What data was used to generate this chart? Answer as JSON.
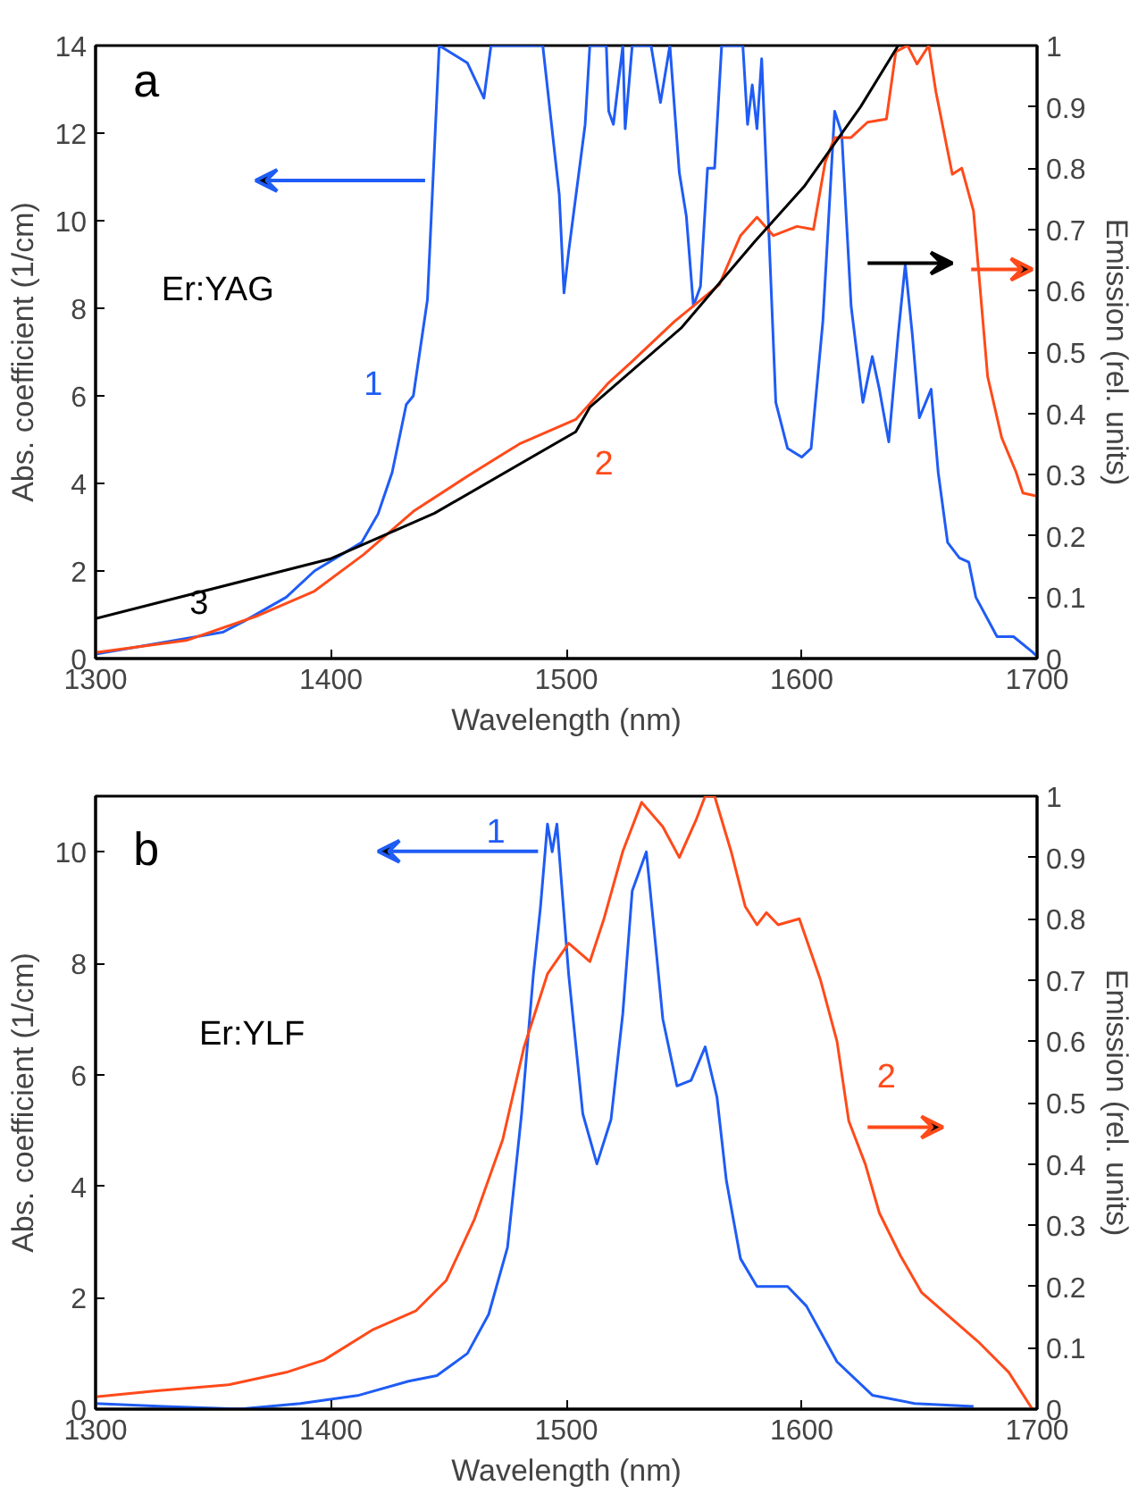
{
  "chart_data": [
    {
      "type": "line",
      "xlabel": "Wavelength (nm)",
      "ylabel": "Abs. coefficient (1/cm)",
      "y2label": "Emission (rel. units)",
      "xlim": [
        1300,
        1700
      ],
      "xticks": [
        1300,
        1400,
        1500,
        1600,
        1700
      ],
      "ylim": [
        0,
        14
      ],
      "yticks": [
        0,
        2,
        4,
        6,
        8,
        10,
        12,
        14
      ],
      "y2lim": [
        0,
        1
      ],
      "y2ticks": [
        0,
        0.1,
        0.2,
        0.3,
        0.4,
        0.5,
        0.6,
        0.7,
        0.8,
        0.9,
        1
      ],
      "line_style": "solid",
      "series": [
        {
          "color": "#1f5cf5",
          "x": [
            1300,
            1354,
            1363,
            1381,
            1393,
            1413,
            1420,
            1426,
            1432,
            1435,
            1441,
            1446,
            1458,
            1465,
            1468,
            1490,
            1497,
            1499,
            1501,
            1508,
            1510,
            1517,
            1518,
            1520,
            1524,
            1525,
            1528,
            1536,
            1540,
            1544,
            1548,
            1551,
            1554,
            1557,
            1560,
            1563,
            1566,
            1575,
            1577,
            1579,
            1581,
            1583,
            1586,
            1589,
            1594,
            1600,
            1604,
            1609,
            1614,
            1617,
            1621,
            1626,
            1630,
            1633,
            1637,
            1641,
            1644,
            1647,
            1650,
            1655,
            1658,
            1662,
            1667,
            1671,
            1674,
            1683,
            1690,
            1698,
            1700
          ],
          "values": [
            0.1,
            0.6,
            0.85,
            1.4,
            2.0,
            2.65,
            3.3,
            4.25,
            5.8,
            6.0,
            8.2,
            14,
            13.6,
            12.8,
            14,
            14,
            10.6,
            8.35,
            9.3,
            12.2,
            14,
            14,
            12.5,
            12.2,
            14,
            12.1,
            14,
            14,
            12.7,
            14,
            11.1,
            10.1,
            8.05,
            8.5,
            11.2,
            11.2,
            14,
            14,
            12.2,
            13.1,
            12.1,
            13.7,
            9.8,
            5.85,
            4.8,
            4.6,
            4.8,
            7.7,
            12.5,
            12.0,
            8.05,
            5.85,
            6.9,
            6.15,
            4.95,
            7.4,
            9.0,
            7.4,
            5.5,
            6.15,
            4.25,
            2.65,
            2.3,
            2.2,
            1.4,
            0.5,
            0.5,
            0.15,
            0.05
          ]
        },
        {
          "color": "#ff4a1a",
          "axis": "y2",
          "x": [
            1300,
            1339,
            1369,
            1393,
            1414,
            1435,
            1459,
            1480,
            1504,
            1518,
            1528,
            1546,
            1565,
            1574,
            1581,
            1588,
            1598,
            1605,
            1610,
            1614,
            1621,
            1628,
            1636,
            1640,
            1645,
            1649,
            1654,
            1657,
            1664,
            1668,
            1673,
            1679,
            1685,
            1691,
            1694,
            1700
          ],
          "values": [
            0.01,
            0.03,
            0.07,
            0.11,
            0.17,
            0.24,
            0.3,
            0.35,
            0.39,
            0.45,
            0.485,
            0.55,
            0.61,
            0.69,
            0.72,
            0.69,
            0.705,
            0.7,
            0.81,
            0.85,
            0.85,
            0.875,
            0.88,
            0.99,
            1.0,
            0.97,
            1.0,
            0.925,
            0.79,
            0.8,
            0.73,
            0.46,
            0.36,
            0.305,
            0.27,
            0.265
          ]
        },
        {
          "color": "#000000",
          "axis": "y2",
          "x": [
            1300,
            1400,
            1444,
            1504,
            1510,
            1549,
            1580,
            1601,
            1625,
            1641
          ],
          "values": [
            0.065,
            0.163,
            0.237,
            0.37,
            0.41,
            0.54,
            0.68,
            0.77,
            0.9,
            1.0
          ]
        }
      ],
      "annotations": [
        "a",
        "Er:YAG",
        "1",
        "2",
        "3"
      ]
    },
    {
      "type": "line",
      "xlabel": "Wavelength (nm)",
      "ylabel": "Abs. coefficient (1/cm)",
      "y2label": "Emission (rel. units)",
      "xlim": [
        1300,
        1700
      ],
      "xticks": [
        1300,
        1400,
        1500,
        1600,
        1700
      ],
      "ylim": [
        0,
        11
      ],
      "yticks": [
        0,
        2,
        4,
        6,
        8,
        10
      ],
      "y2lim": [
        0,
        1
      ],
      "y2ticks": [
        0,
        0.1,
        0.2,
        0.3,
        0.4,
        0.5,
        0.6,
        0.7,
        0.8,
        0.9,
        1
      ],
      "line_style": "solid",
      "series": [
        {
          "color": "#1f5cf5",
          "x": [
            1300,
            1329,
            1361,
            1387,
            1412,
            1433,
            1445,
            1458,
            1467,
            1475,
            1481,
            1486,
            1489,
            1492,
            1494,
            1496,
            1501,
            1507,
            1513,
            1519,
            1524,
            1528,
            1534,
            1538,
            1541,
            1547,
            1553,
            1559,
            1564,
            1568,
            1574,
            1581,
            1594,
            1602,
            1615,
            1630,
            1648,
            1673
          ],
          "values": [
            0.1,
            0.05,
            0.0,
            0.1,
            0.25,
            0.5,
            0.6,
            1.0,
            1.7,
            2.9,
            5.3,
            7.8,
            9.0,
            10.5,
            10.0,
            10.5,
            7.8,
            5.3,
            4.4,
            5.2,
            7.1,
            9.3,
            10.0,
            8.3,
            7.0,
            5.8,
            5.9,
            6.5,
            5.6,
            4.1,
            2.7,
            2.2,
            2.2,
            1.85,
            0.85,
            0.25,
            0.1,
            0.05
          ]
        },
        {
          "color": "#ff4a1a",
          "axis": "y2",
          "x": [
            1300,
            1326,
            1357,
            1381,
            1397,
            1418,
            1436,
            1449,
            1461,
            1473,
            1482,
            1492,
            1501,
            1510,
            1516,
            1524,
            1532,
            1541,
            1548,
            1555,
            1559,
            1563,
            1570,
            1576,
            1581,
            1585,
            1590,
            1599,
            1608,
            1615,
            1620,
            1627,
            1633,
            1642,
            1651,
            1663,
            1675,
            1688,
            1698
          ],
          "values": [
            0.02,
            0.03,
            0.04,
            0.06,
            0.08,
            0.13,
            0.16,
            0.21,
            0.31,
            0.44,
            0.59,
            0.71,
            0.76,
            0.73,
            0.8,
            0.91,
            0.99,
            0.95,
            0.9,
            0.96,
            1.0,
            1.0,
            0.91,
            0.82,
            0.79,
            0.81,
            0.79,
            0.8,
            0.7,
            0.6,
            0.47,
            0.4,
            0.32,
            0.25,
            0.19,
            0.15,
            0.11,
            0.06,
            0.0
          ]
        }
      ],
      "annotations": [
        "b",
        "Er:YLF",
        "1",
        "2"
      ]
    }
  ]
}
